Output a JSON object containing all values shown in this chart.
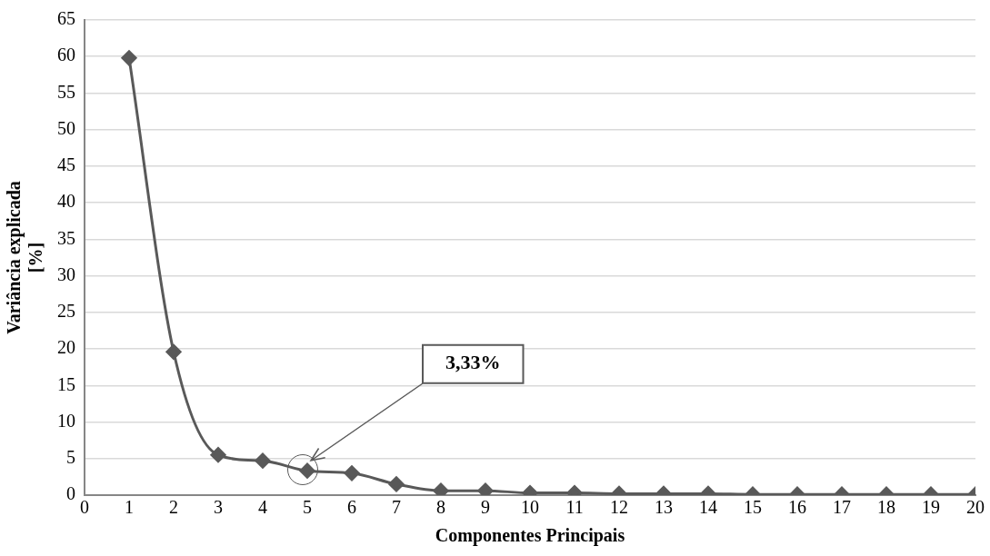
{
  "chart_data": {
    "type": "line",
    "xlabel": "Componentes Principais",
    "ylabel": "Variância explicada [%]",
    "x": [
      1,
      2,
      3,
      4,
      5,
      6,
      7,
      8,
      9,
      10,
      11,
      12,
      13,
      14,
      15,
      16,
      17,
      18,
      19,
      20
    ],
    "series": [
      {
        "color": "#595959",
        "values": [
          59.8,
          19.6,
          5.5,
          4.7,
          3.33,
          3.0,
          1.5,
          0.6,
          0.6,
          0.3,
          0.3,
          0.2,
          0.2,
          0.2,
          0.1,
          0.1,
          0.1,
          0.1,
          0.1,
          0.1
        ]
      }
    ],
    "xlim": [
      0,
      20
    ],
    "xticks": [
      0,
      1,
      2,
      3,
      4,
      5,
      6,
      7,
      8,
      9,
      10,
      11,
      12,
      13,
      14,
      15,
      16,
      17,
      18,
      19,
      20
    ],
    "ylim": [
      0,
      65
    ],
    "yticks": [
      0,
      5,
      10,
      15,
      20,
      25,
      30,
      35,
      40,
      45,
      50,
      55,
      60,
      65
    ],
    "grid": "y",
    "legend": false,
    "marker": "diamond",
    "line_style": "solid",
    "annotations": [
      "3,33%"
    ]
  }
}
